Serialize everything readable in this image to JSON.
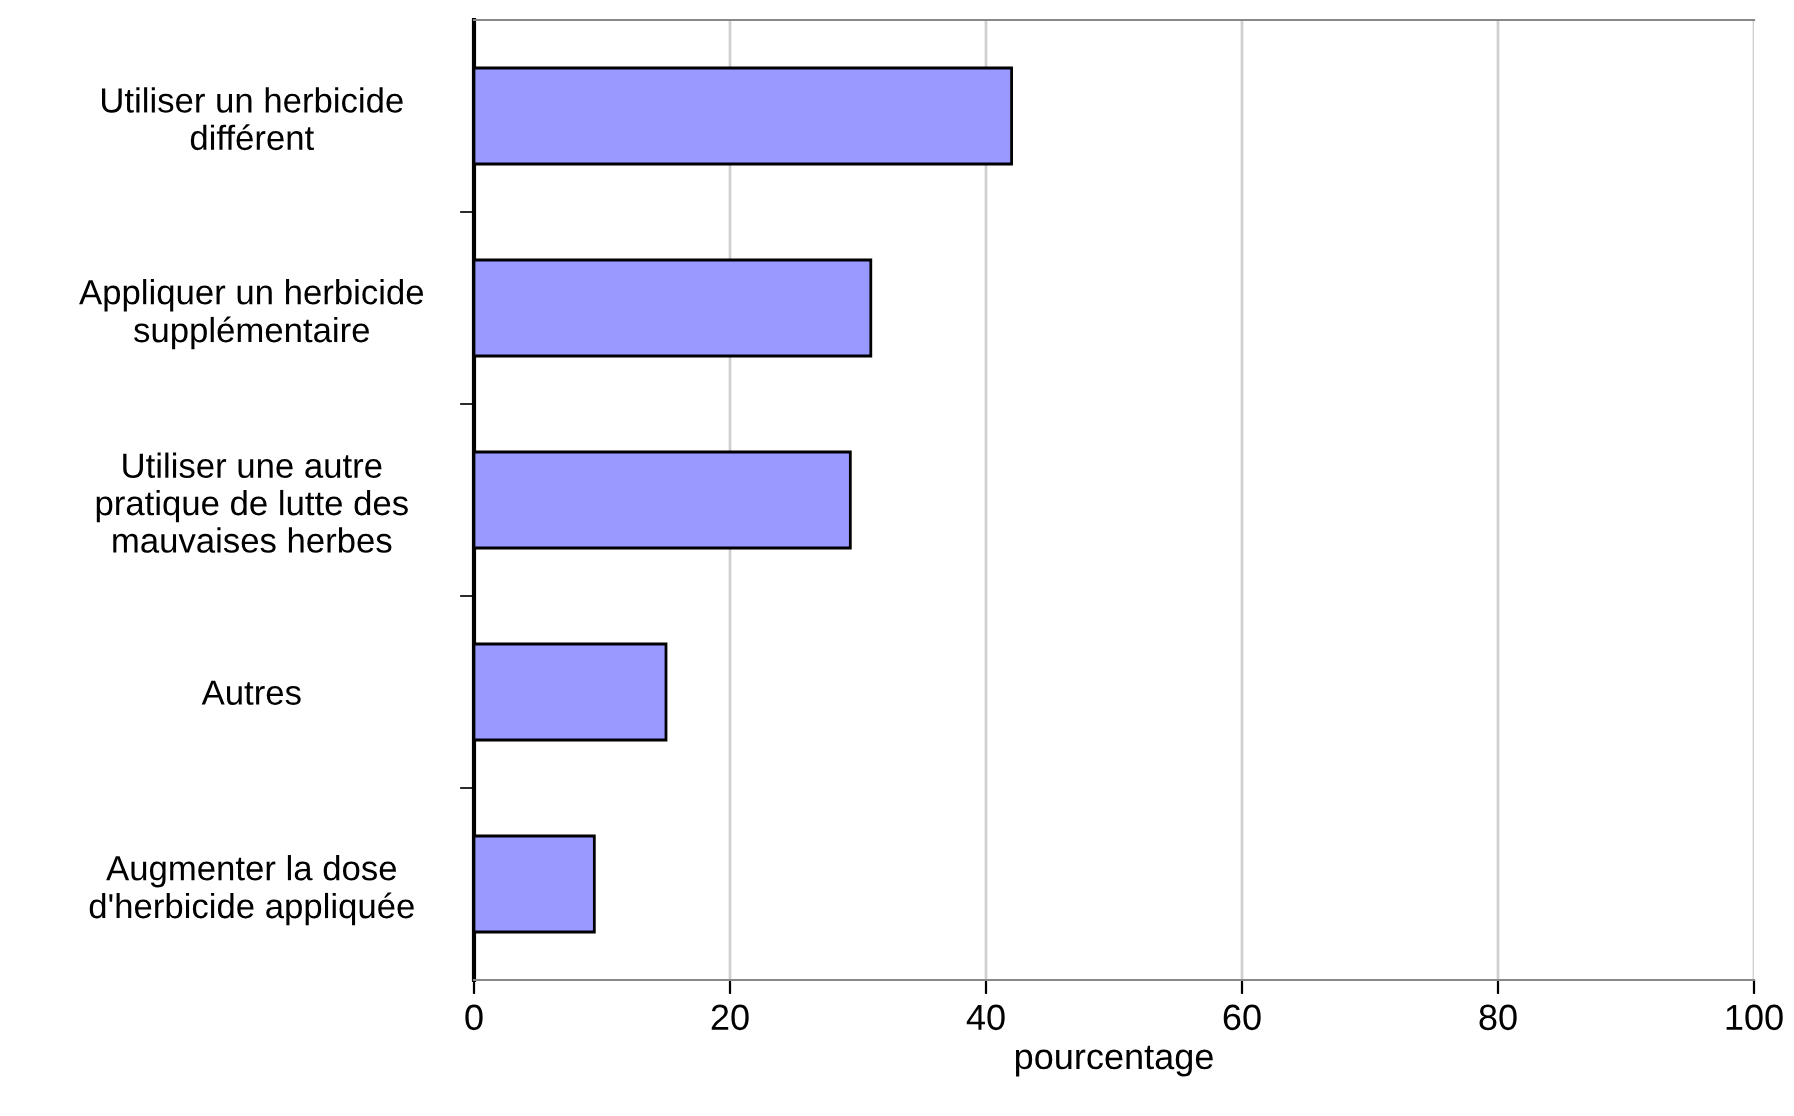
{
  "chart_data": {
    "type": "bar",
    "orientation": "horizontal",
    "xlabel": "pourcentage",
    "categories": [
      "Utiliser un herbicide\ndifférent",
      "Appliquer un herbicide\nsupplémentaire",
      "Utiliser une autre\npratique de lutte des\nmauvaises herbes",
      "Autres",
      "Augmenter la dose\nd'herbicide appliquée"
    ],
    "values": [
      42.0,
      31.0,
      29.4,
      15.0,
      9.4
    ],
    "color": "#9999ff",
    "xlim": [
      0,
      100
    ],
    "xticks": [
      0,
      20,
      40,
      60,
      80,
      100
    ],
    "grid": "x"
  }
}
